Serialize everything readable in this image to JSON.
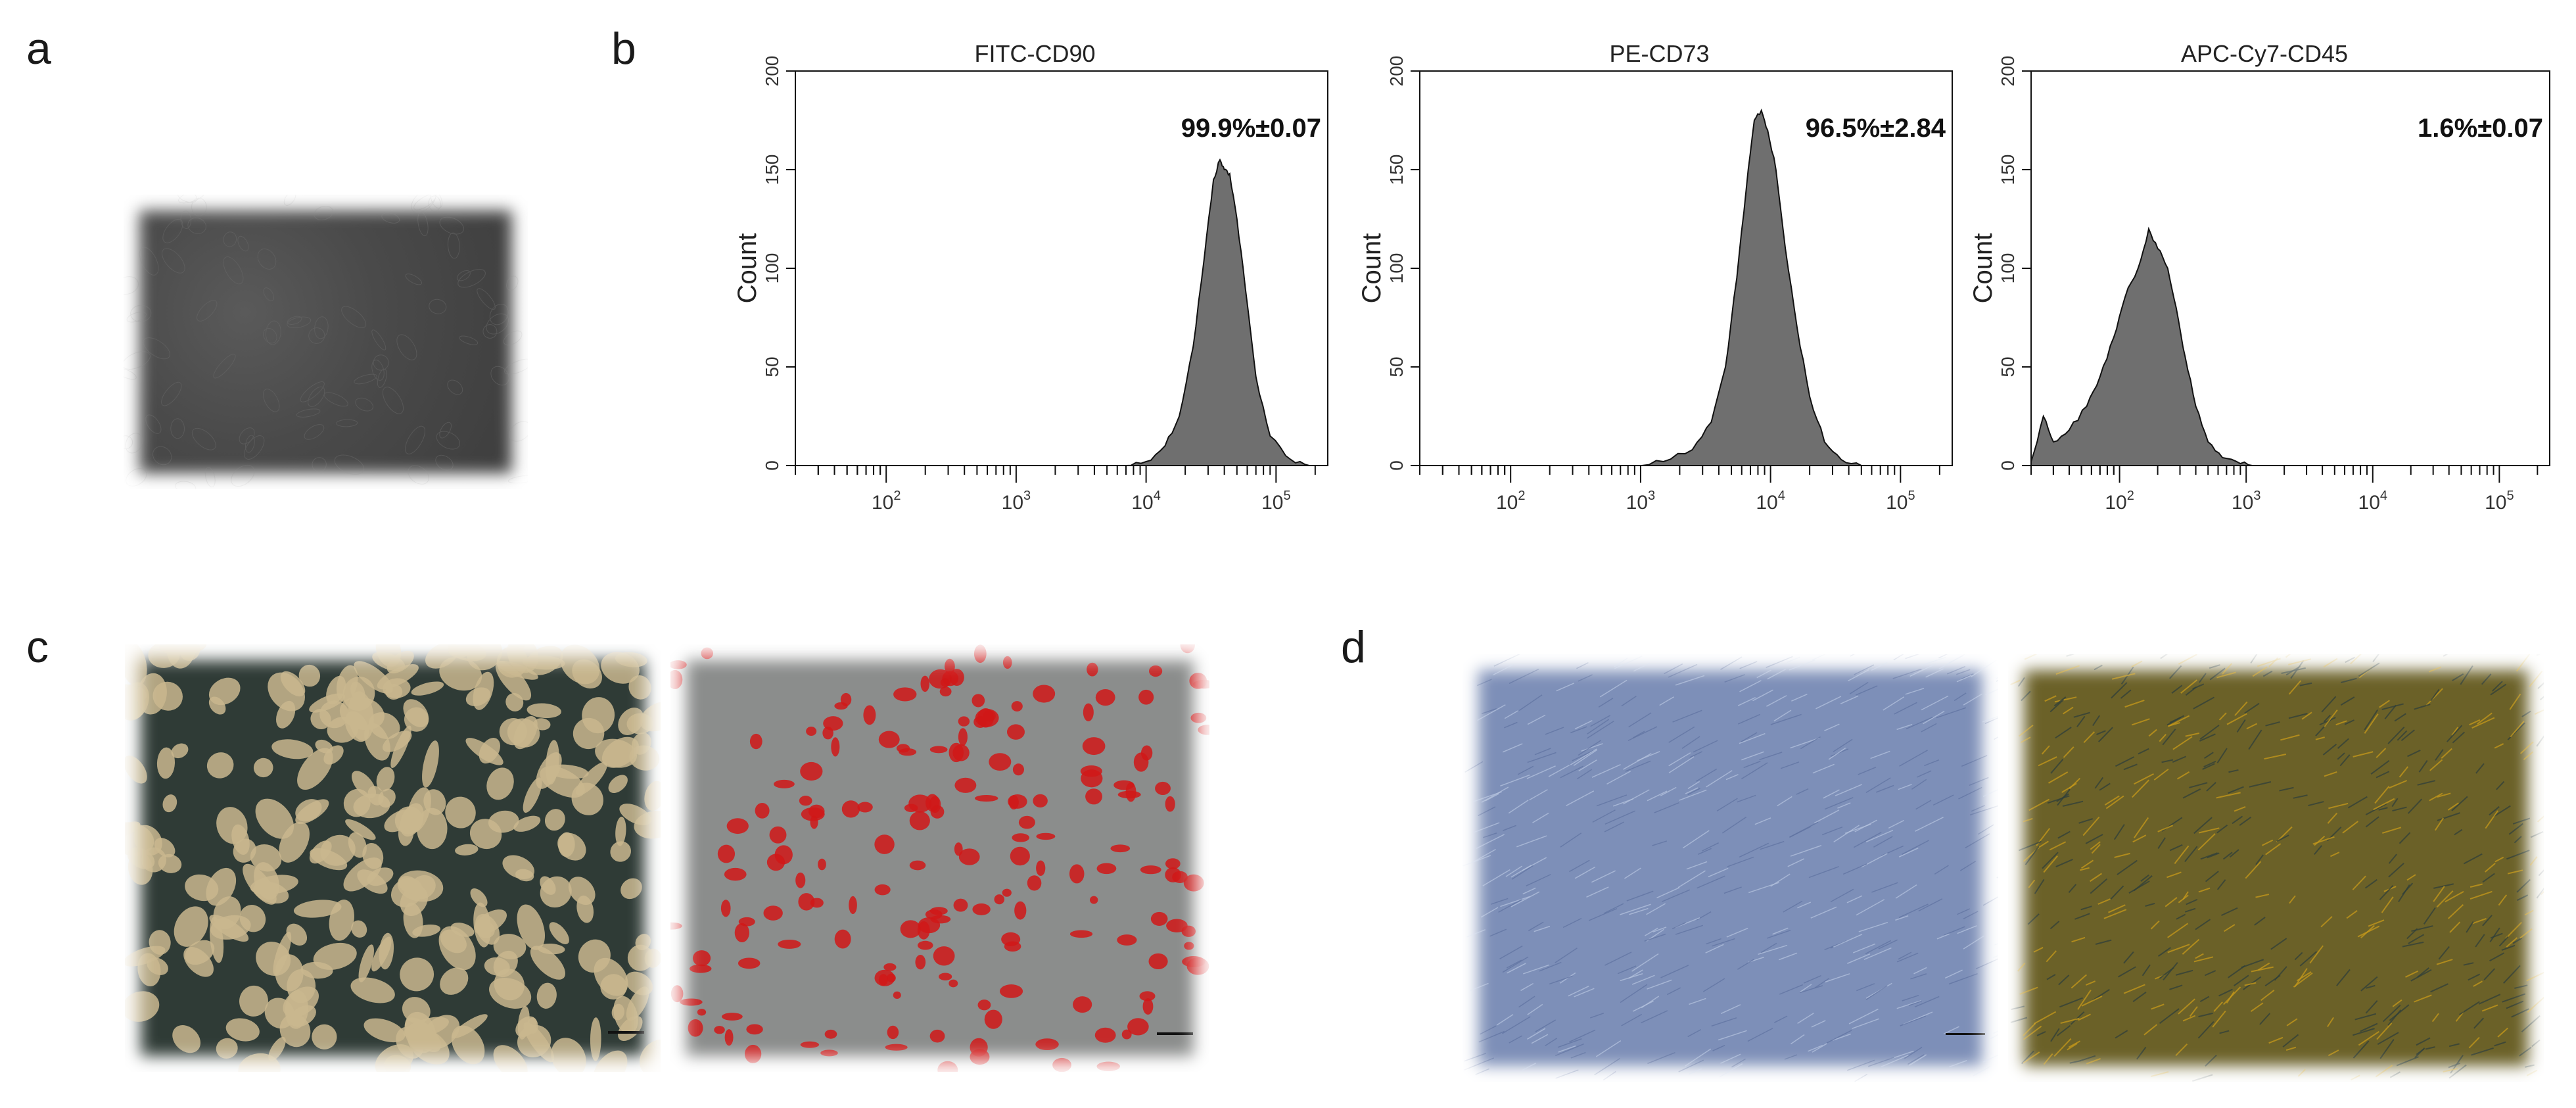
{
  "panels": {
    "a": {
      "label": "a"
    },
    "b": {
      "label": "b"
    },
    "c": {
      "label": "c"
    },
    "d": {
      "label": "d"
    }
  },
  "colors": {
    "histogram_fill": "#6f6f6f",
    "histogram_stroke": "#111111",
    "panel_a_tissue": "#4a4a4a",
    "panel_c_left_base": "#c9b78e",
    "panel_c_left_dark": "#2f3b36",
    "panel_c_right_base": "#8b8d8c",
    "panel_c_right_stain": "#d01818",
    "panel_d_left_base": "#7d8fb8",
    "panel_d_right_base": "#6b6128",
    "panel_d_right_stain": "#c79a1a"
  },
  "chart_data": [
    {
      "type": "area",
      "title": "FITC-CD90",
      "ylabel": "Count",
      "xscale": "log",
      "xlim": [
        20,
        250000
      ],
      "ylim": [
        0,
        200
      ],
      "yticks": [
        0,
        50,
        100,
        150,
        200
      ],
      "xticks": [
        "10^2",
        "10^3",
        "10^4",
        "10^5"
      ],
      "annotation": "99.9%±0.07",
      "series": [
        {
          "x": [
            7000,
            10000,
            14000,
            18000,
            23000,
            28000,
            33000,
            37000,
            40000,
            44000,
            50000,
            58000,
            70000,
            90000,
            130000,
            180000
          ],
          "values": [
            0,
            2,
            10,
            25,
            60,
            105,
            145,
            155,
            150,
            148,
            125,
            90,
            45,
            15,
            3,
            0
          ]
        }
      ]
    },
    {
      "type": "area",
      "title": "PE-CD73",
      "ylabel": "Count",
      "xscale": "log",
      "xlim": [
        20,
        250000
      ],
      "ylim": [
        0,
        200
      ],
      "yticks": [
        0,
        50,
        100,
        150,
        200
      ],
      "xticks": [
        "10^2",
        "10^3",
        "10^4",
        "10^5"
      ],
      "annotation": "96.5%±2.84",
      "series": [
        {
          "x": [
            900,
            1500,
            2500,
            3500,
            4500,
            5500,
            6500,
            7500,
            8500,
            9500,
            11000,
            13000,
            16000,
            20000,
            26000,
            35000,
            50000
          ],
          "values": [
            0,
            2,
            8,
            22,
            50,
            95,
            140,
            175,
            180,
            170,
            150,
            110,
            70,
            35,
            12,
            3,
            0
          ]
        }
      ]
    },
    {
      "type": "area",
      "title": "APC-Cy7-CD45",
      "ylabel": "Count",
      "xscale": "log",
      "xlim": [
        20,
        250000
      ],
      "ylim": [
        0,
        200
      ],
      "yticks": [
        0,
        50,
        100,
        150,
        200
      ],
      "xticks": [
        "10^2",
        "10^3",
        "10^4",
        "10^5"
      ],
      "annotation": "1.6%±0.07",
      "series": [
        {
          "x": [
            20,
            25,
            30,
            40,
            55,
            70,
            90,
            110,
            140,
            170,
            200,
            240,
            280,
            330,
            400,
            500,
            650,
            900,
            1200
          ],
          "values": [
            2,
            25,
            12,
            18,
            30,
            45,
            65,
            85,
            100,
            120,
            110,
            100,
            80,
            55,
            30,
            12,
            4,
            1,
            0
          ]
        }
      ]
    }
  ]
}
